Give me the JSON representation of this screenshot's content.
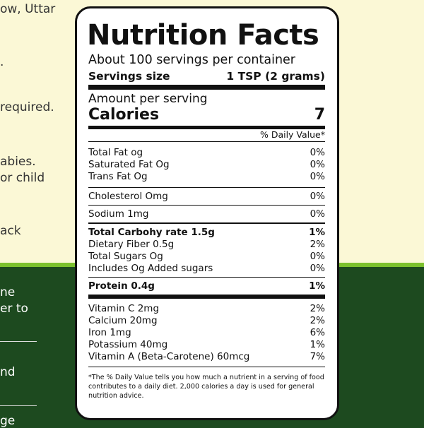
{
  "side_text": {
    "cream": [
      "ow,  Uttar",
      ".",
      "required.",
      "abies.",
      "or child",
      "ack"
    ],
    "green": [
      "ne",
      "er to",
      "nd",
      "ge"
    ]
  },
  "label": {
    "title": "Nutrition Facts",
    "servings_per_container": "About 100 servings per container",
    "serving_size_label": "Servings size",
    "serving_size_value": "1 TSP (2 grams)",
    "amount_per_serving": "Amount per serving",
    "calories_label": "Calories",
    "calories_value": "7",
    "daily_value_header": "% Daily Value*",
    "nutrients": [
      {
        "name": "Total Fat og",
        "dv": "0%"
      },
      {
        "name": "Saturated Fat Og",
        "dv": "0%"
      },
      {
        "name": "Trans Fat Og",
        "dv": "0%"
      },
      {
        "name": "Cholesterol Omg",
        "dv": "0%"
      },
      {
        "name": "Sodium 1mg",
        "dv": "0%"
      },
      {
        "name": "Total Carbohy rate 1.5g",
        "dv": "1%"
      },
      {
        "name": "Dietary Fiber 0.5g",
        "dv": "2%"
      },
      {
        "name": "Total Sugars Og",
        "dv": "0%"
      },
      {
        "name": "Includes Og Added sugars",
        "dv": "0%"
      },
      {
        "name": "Protein 0.4g",
        "dv": "1%"
      },
      {
        "name": "Vitamin C 2mg",
        "dv": "2%"
      },
      {
        "name": "Calcium 20mg",
        "dv": "2%"
      },
      {
        "name": "Iron 1mg",
        "dv": "6%"
      },
      {
        "name": "Potassium 40mg",
        "dv": "1%"
      },
      {
        "name": "Vitamin A (Beta-Carotene) 60mcg",
        "dv": "7%"
      }
    ],
    "footnote": "*The % Daily Value tells you how much a nutrient in a serving of food contributes to a daily diet. 2,000 calories a day is used for general nutrition advice."
  }
}
